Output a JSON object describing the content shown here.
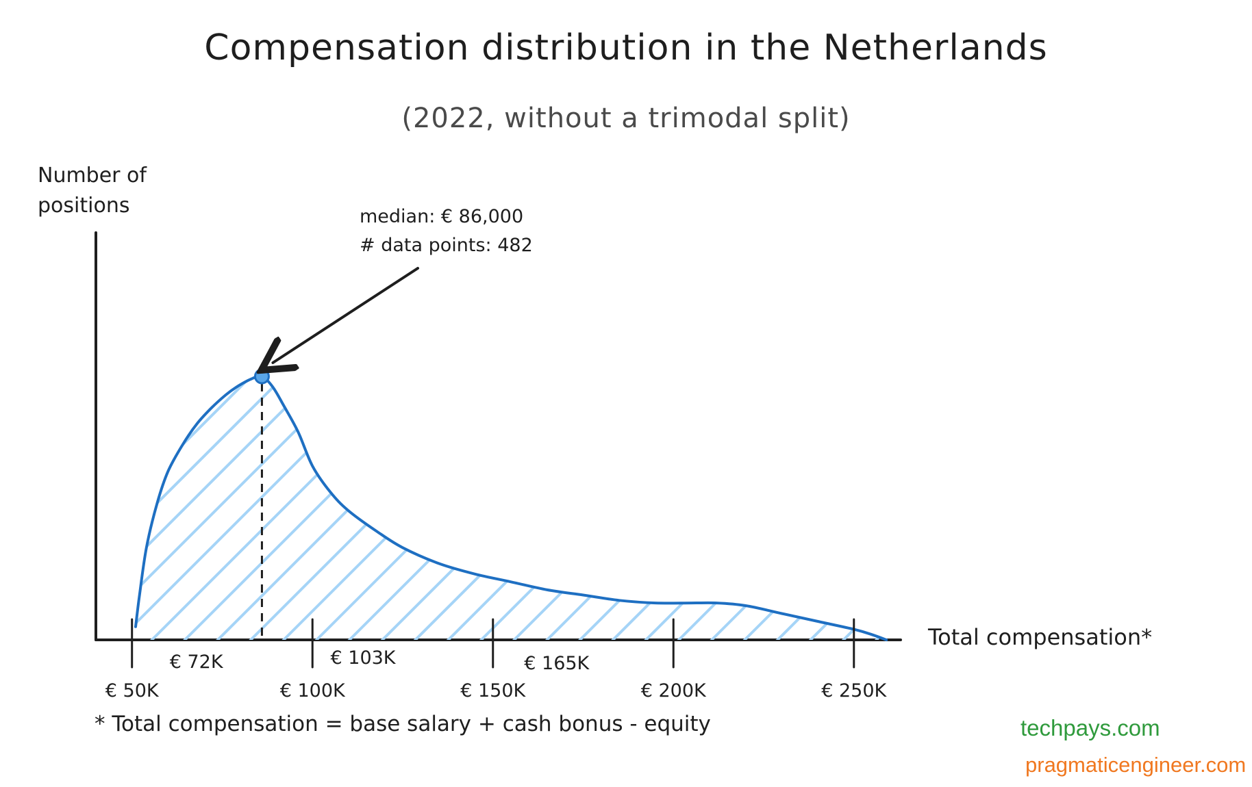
{
  "chart_data": {
    "type": "area",
    "title": "Compensation distribution in the Netherlands",
    "subtitle": "(2022, without a trimodal split)",
    "ylabel": "Number of positions",
    "xlabel": "Total compensation*",
    "xlim": [
      40000,
      262000
    ],
    "ylim": [
      0,
      100
    ],
    "major_ticks": [
      {
        "value": 50000,
        "label": "€ 50K"
      },
      {
        "value": 100000,
        "label": "€ 100K"
      },
      {
        "value": 150000,
        "label": "€ 150K"
      },
      {
        "value": 200000,
        "label": "€ 200K"
      },
      {
        "value": 250000,
        "label": "€ 250K"
      }
    ],
    "minor_ticks": [
      {
        "value": 72000,
        "label": "€ 72K"
      },
      {
        "value": 103000,
        "label": "€ 103K"
      },
      {
        "value": 165000,
        "label": "€ 165K"
      }
    ],
    "x": [
      51000,
      52000,
      54000,
      57000,
      60000,
      64000,
      68000,
      72000,
      76000,
      79000,
      83000,
      86000,
      89000,
      92000,
      96000,
      100000,
      105000,
      110000,
      118000,
      125000,
      135000,
      145000,
      155000,
      165000,
      175000,
      185000,
      195000,
      205000,
      212000,
      220000,
      230000,
      240000,
      250000,
      255000,
      259000
    ],
    "values": [
      5,
      16,
      35,
      52,
      64,
      74,
      82,
      88,
      93,
      96,
      99,
      100,
      96,
      89,
      79,
      66,
      56,
      49,
      41,
      35,
      29,
      25,
      22,
      19,
      17,
      15,
      14,
      14,
      14,
      13,
      10,
      7,
      4,
      2,
      0
    ],
    "median": {
      "value": 86000,
      "label": "median: € 86,000",
      "data_points_label": "# data points: 482"
    },
    "series_color": "#1e6fc2",
    "fill_color": "#a5d4f7",
    "footnote": "* Total compensation = base salary + cash bonus - equity"
  },
  "branding": {
    "site1": "techpays.com",
    "site2": "pragmaticengineer.com"
  }
}
